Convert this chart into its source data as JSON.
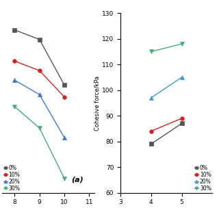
{
  "left_label_a": "(a)",
  "left_xlim": [
    7.5,
    11.2
  ],
  "left_xticks": [
    8,
    9,
    10,
    11
  ],
  "left_ylim": [
    60,
    135
  ],
  "left_series": [
    {
      "label": "0%",
      "color": "#555555",
      "marker": "s",
      "x": [
        8,
        9,
        10
      ],
      "y": [
        128,
        124,
        105
      ]
    },
    {
      "label": "10%",
      "color": "#cc2222",
      "marker": "o",
      "x": [
        8,
        9,
        10
      ],
      "y": [
        115,
        111,
        100
      ]
    },
    {
      "label": "20%",
      "color": "#4477cc",
      "marker": "^",
      "x": [
        8,
        9,
        10
      ],
      "y": [
        107,
        101,
        83
      ]
    },
    {
      "label": "30%",
      "color": "#44aa77",
      "marker": "v",
      "x": [
        8,
        9,
        10
      ],
      "y": [
        96,
        87,
        66
      ]
    }
  ],
  "right_xlim": [
    3,
    6
  ],
  "right_ylim": [
    60,
    130
  ],
  "right_yticks": [
    60,
    70,
    80,
    90,
    100,
    110,
    120,
    130
  ],
  "right_xticks": [
    3,
    4,
    5
  ],
  "right_ylabel": "Cohesive force/kPa",
  "right_series": [
    {
      "label": "0%",
      "color": "#555555",
      "marker": "s",
      "x": [
        4,
        5
      ],
      "y": [
        79,
        87
      ]
    },
    {
      "label": "10%",
      "color": "#cc2222",
      "marker": "o",
      "x": [
        4,
        5
      ],
      "y": [
        84,
        89
      ]
    },
    {
      "label": "20%",
      "color": "#4499cc",
      "marker": "^",
      "x": [
        4,
        5
      ],
      "y": [
        97,
        105
      ]
    },
    {
      "label": "30%",
      "color": "#44aa77",
      "marker": "v",
      "x": [
        4,
        5
      ],
      "y": [
        115,
        118
      ]
    }
  ],
  "legend_labels": [
    "0%",
    "10%",
    "20%",
    "30%"
  ]
}
